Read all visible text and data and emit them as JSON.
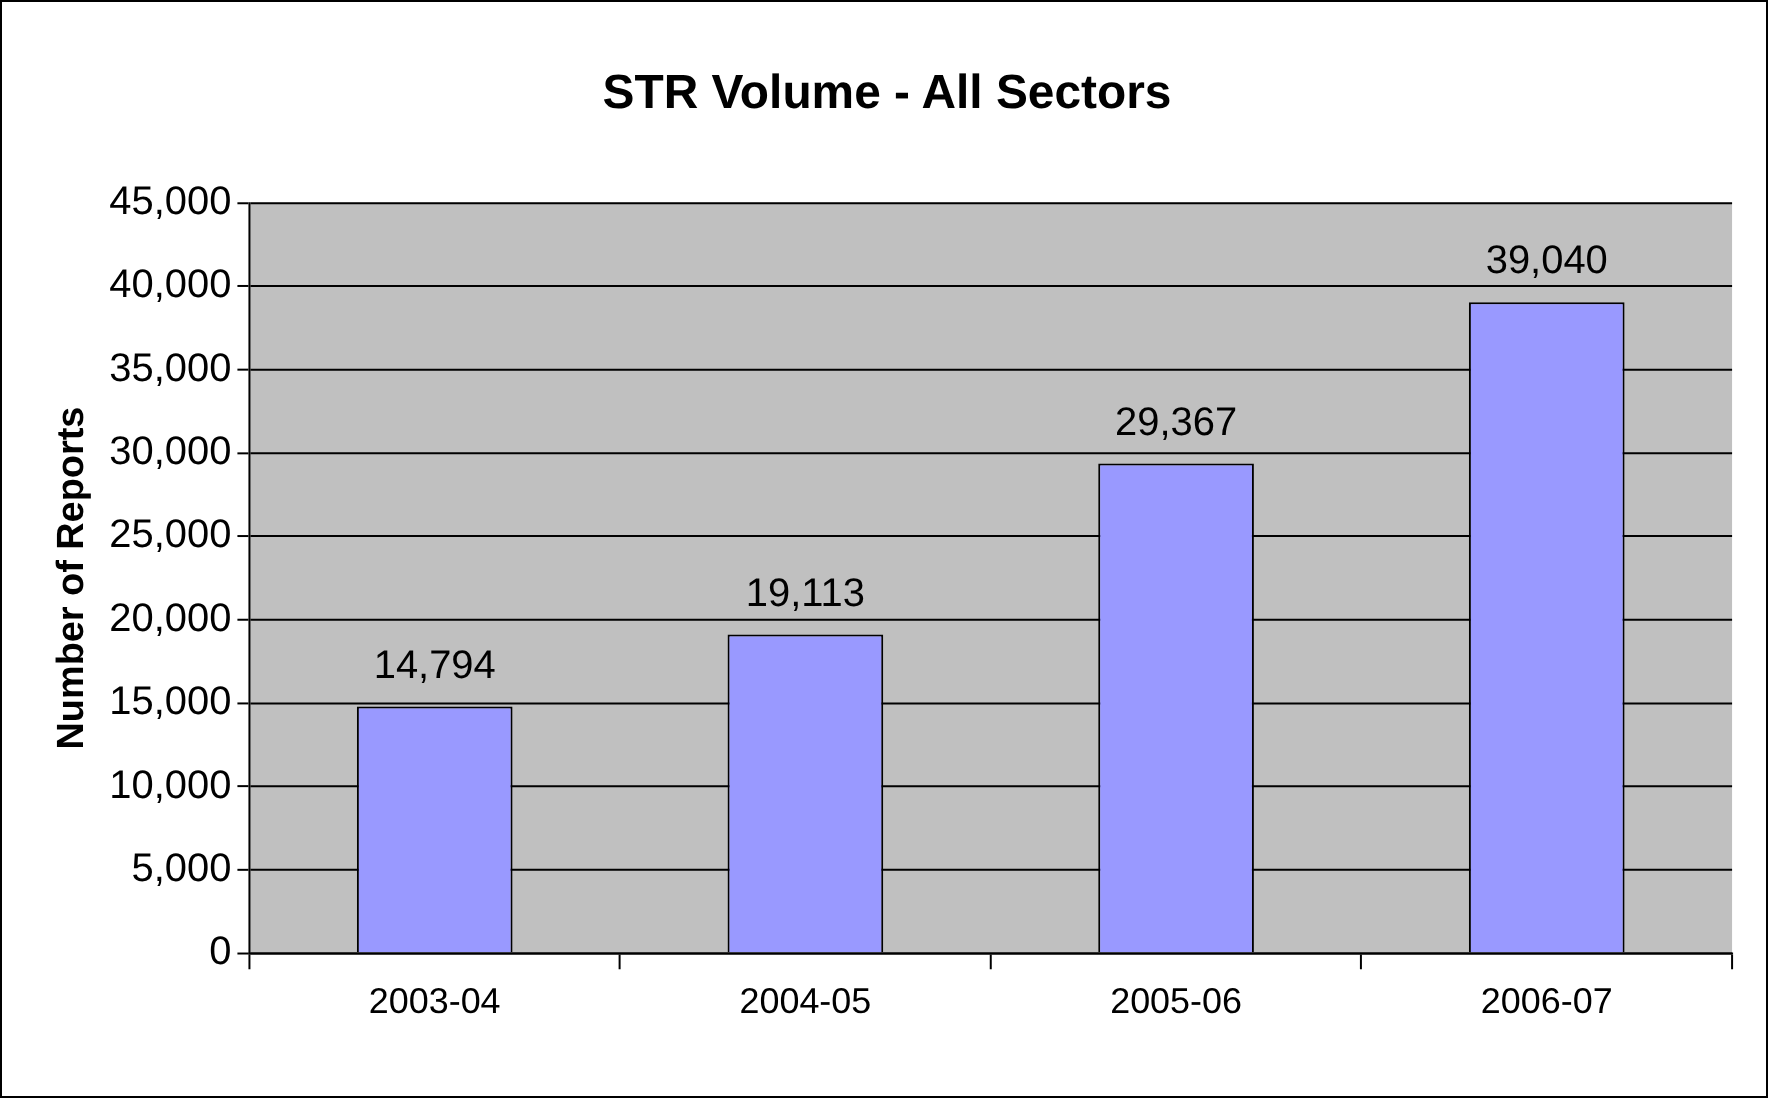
{
  "chart_data": {
    "type": "bar",
    "title": "STR Volume - All Sectors",
    "ylabel": "Number of Reports",
    "categories": [
      "2003-04",
      "2004-05",
      "2005-06",
      "2006-07"
    ],
    "values": [
      14794,
      19113,
      29367,
      39040
    ],
    "color": "#9999ff",
    "value_labels": [
      "14,794",
      "19,113",
      "29,367",
      "39,040"
    ],
    "ylim": [
      0,
      45000
    ],
    "yticks": [
      0,
      {
        "value": 5000,
        "label": "5,000"
      },
      {
        "value": 10000,
        "label": "10,000"
      },
      {
        "value": 15000,
        "label": "15,000"
      },
      {
        "value": 20000,
        "label": "20,000"
      },
      {
        "value": 25000,
        "label": "25,000"
      },
      {
        "value": 30000,
        "label": "30,000"
      },
      {
        "value": 35000,
        "label": "35,000"
      },
      {
        "value": 40000,
        "label": "40,000"
      },
      {
        "value": 45000,
        "label": "45,000"
      }
    ],
    "grid": "y"
  }
}
